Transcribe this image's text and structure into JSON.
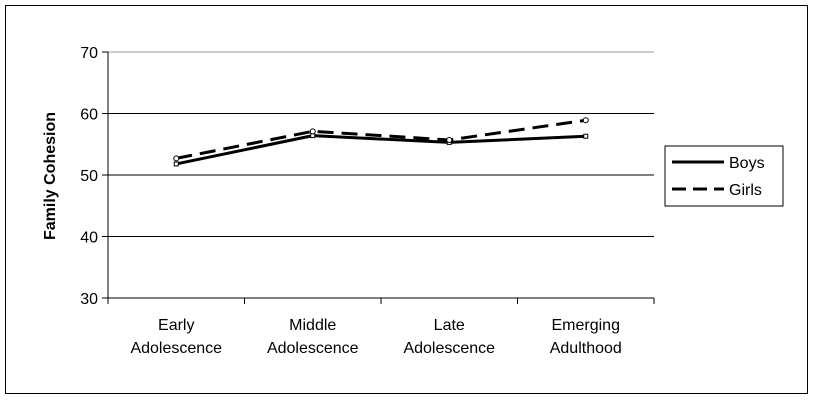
{
  "chart_data": {
    "type": "line",
    "categories": [
      [
        "Early",
        "Adolescence"
      ],
      [
        "Middle",
        "Adolescence"
      ],
      [
        "Late",
        "Adolescence"
      ],
      [
        "Emerging",
        "Adulthood"
      ]
    ],
    "series": [
      {
        "name": "Boys",
        "values": [
          51.8,
          56.4,
          55.3,
          56.3
        ],
        "style": "solid"
      },
      {
        "name": "Girls",
        "values": [
          52.7,
          57.1,
          55.7,
          58.9
        ],
        "style": "dashed"
      }
    ],
    "ylabel": "Family Cohesion",
    "ylim": [
      30,
      70
    ],
    "yticks": [
      30,
      40,
      50,
      60,
      70
    ],
    "grid": true,
    "legend": "right"
  }
}
